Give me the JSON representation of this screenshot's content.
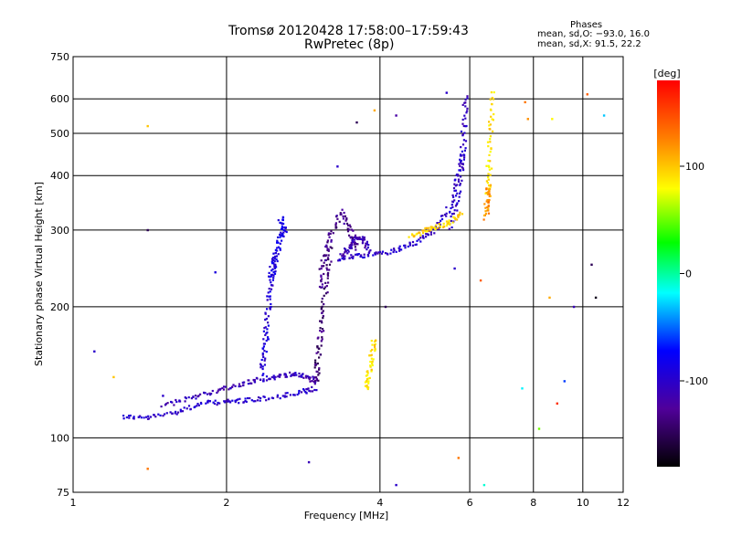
{
  "title_line1": "Tromsø 20120428 17:58:00–17:59:43",
  "title_line2": "RwPretec (8p)",
  "phases": {
    "title": "Phases",
    "line_o": "mean, sd,O: −93.0, 16.0",
    "line_x": "mean, sd,X: 91.5, 22.2"
  },
  "colorbar": {
    "label": "[deg]",
    "range": [
      -180,
      180
    ],
    "ticks": [
      {
        "value": 100,
        "label": "100"
      },
      {
        "value": 0,
        "label": "0"
      },
      {
        "value": -100,
        "label": "-100"
      }
    ]
  },
  "chart_data": {
    "type": "scatter",
    "title": "Tromsø 20120428 17:58:00–17:59:43",
    "subtitle": "RwPretec (8p)",
    "xlabel": "Frequency [MHz]",
    "ylabel": "Stationary phase Virtual Height [km]",
    "xscale": "log",
    "yscale": "log",
    "xlim": [
      1,
      12
    ],
    "ylim": [
      75,
      750
    ],
    "grid": true,
    "xticks": [
      {
        "value": 1,
        "label": "1"
      },
      {
        "value": 2,
        "label": "2"
      },
      {
        "value": 4,
        "label": "4"
      },
      {
        "value": 6,
        "label": "6"
      },
      {
        "value": 8,
        "label": "8"
      },
      {
        "value": 10,
        "label": "10"
      },
      {
        "value": 12,
        "label": "12"
      }
    ],
    "yticks": [
      {
        "value": 75,
        "label": "75"
      },
      {
        "value": 100,
        "label": "100"
      },
      {
        "value": 200,
        "label": "200"
      },
      {
        "value": 300,
        "label": "300"
      },
      {
        "value": 400,
        "label": "400"
      },
      {
        "value": 500,
        "label": "500"
      },
      {
        "value": 600,
        "label": "600"
      },
      {
        "value": 750,
        "label": "750"
      }
    ],
    "color_encodes": "phase [deg]",
    "traces": [
      {
        "x": [
          1.25,
          1.4,
          1.6,
          1.8,
          2.0,
          2.2,
          2.5,
          2.8,
          3.0
        ],
        "y": [
          112,
          111,
          115,
          120,
          121,
          122,
          124,
          127,
          130
        ],
        "phase": -100
      },
      {
        "x": [
          1.5,
          1.7,
          1.9,
          2.1,
          2.3,
          2.5,
          2.7,
          2.9,
          3.0
        ],
        "y": [
          118,
          124,
          128,
          132,
          136,
          138,
          140,
          138,
          134
        ],
        "phase": -110
      },
      {
        "x": [
          2.35,
          2.38,
          2.4,
          2.42,
          2.45,
          2.5
        ],
        "y": [
          140,
          160,
          180,
          210,
          240,
          270
        ],
        "phase": -95
      },
      {
        "x": [
          2.45,
          2.5,
          2.55,
          2.6,
          2.55
        ],
        "y": [
          230,
          260,
          290,
          300,
          320
        ],
        "phase": -85
      },
      {
        "x": [
          3.0,
          3.02,
          3.05,
          3.1,
          3.15,
          3.2
        ],
        "y": [
          135,
          150,
          170,
          200,
          240,
          280
        ],
        "phase": -140
      },
      {
        "x": [
          3.05,
          3.1,
          3.2,
          3.35,
          3.5,
          3.6
        ],
        "y": [
          220,
          255,
          290,
          330,
          300,
          270
        ],
        "phase": -130
      },
      {
        "x": [
          3.3,
          3.6,
          4.0,
          4.4,
          4.8,
          5.2,
          5.5,
          5.7,
          5.85
        ],
        "y": [
          258,
          261,
          265,
          272,
          285,
          305,
          340,
          400,
          460
        ],
        "phase": -100
      },
      {
        "x": [
          5.5,
          5.7,
          5.8,
          5.85,
          5.9
        ],
        "y": [
          300,
          360,
          430,
          520,
          620
        ],
        "phase": -105
      },
      {
        "x": [
          3.35,
          3.5,
          3.6,
          3.7,
          3.8
        ],
        "y": [
          260,
          275,
          290,
          285,
          270
        ],
        "phase": -115
      },
      {
        "x": [
          3.75,
          3.8,
          3.85,
          3.9
        ],
        "y": [
          130,
          140,
          155,
          170
        ],
        "phase": 90
      },
      {
        "x": [
          4.6,
          4.9,
          5.2,
          5.5,
          5.8
        ],
        "y": [
          290,
          300,
          305,
          315,
          330
        ],
        "phase": 95
      },
      {
        "x": [
          6.5,
          6.55,
          6.6,
          6.65
        ],
        "y": [
          360,
          420,
          520,
          630
        ],
        "phase": 90
      },
      {
        "x": [
          6.45,
          6.5,
          6.55
        ],
        "y": [
          320,
          350,
          380
        ],
        "phase": 120
      }
    ],
    "scatter_points": [
      {
        "x": 1.1,
        "y": 158,
        "phase": -100
      },
      {
        "x": 1.2,
        "y": 138,
        "phase": 100
      },
      {
        "x": 1.4,
        "y": 85,
        "phase": 130
      },
      {
        "x": 1.4,
        "y": 520,
        "phase": 100
      },
      {
        "x": 1.4,
        "y": 300,
        "phase": -150
      },
      {
        "x": 1.5,
        "y": 125,
        "phase": -100
      },
      {
        "x": 1.9,
        "y": 240,
        "phase": -90
      },
      {
        "x": 2.9,
        "y": 88,
        "phase": -110
      },
      {
        "x": 3.3,
        "y": 420,
        "phase": -100
      },
      {
        "x": 3.6,
        "y": 530,
        "phase": -150
      },
      {
        "x": 3.9,
        "y": 565,
        "phase": 110
      },
      {
        "x": 4.1,
        "y": 200,
        "phase": -150
      },
      {
        "x": 4.3,
        "y": 550,
        "phase": -120
      },
      {
        "x": 4.3,
        "y": 78,
        "phase": -100
      },
      {
        "x": 5.4,
        "y": 620,
        "phase": -100
      },
      {
        "x": 5.6,
        "y": 245,
        "phase": -100
      },
      {
        "x": 5.7,
        "y": 90,
        "phase": 130
      },
      {
        "x": 6.3,
        "y": 230,
        "phase": 140
      },
      {
        "x": 6.4,
        "y": 78,
        "phase": -10
      },
      {
        "x": 7.6,
        "y": 130,
        "phase": -20
      },
      {
        "x": 7.7,
        "y": 590,
        "phase": 130
      },
      {
        "x": 7.8,
        "y": 540,
        "phase": 120
      },
      {
        "x": 8.2,
        "y": 105,
        "phase": 50
      },
      {
        "x": 8.6,
        "y": 210,
        "phase": 110
      },
      {
        "x": 8.7,
        "y": 540,
        "phase": 80
      },
      {
        "x": 8.9,
        "y": 120,
        "phase": 160
      },
      {
        "x": 9.2,
        "y": 135,
        "phase": -60
      },
      {
        "x": 9.6,
        "y": 200,
        "phase": -110
      },
      {
        "x": 10.2,
        "y": 615,
        "phase": 140
      },
      {
        "x": 10.4,
        "y": 250,
        "phase": -150
      },
      {
        "x": 10.6,
        "y": 210,
        "phase": -170
      },
      {
        "x": 11.0,
        "y": 550,
        "phase": -30
      }
    ]
  }
}
